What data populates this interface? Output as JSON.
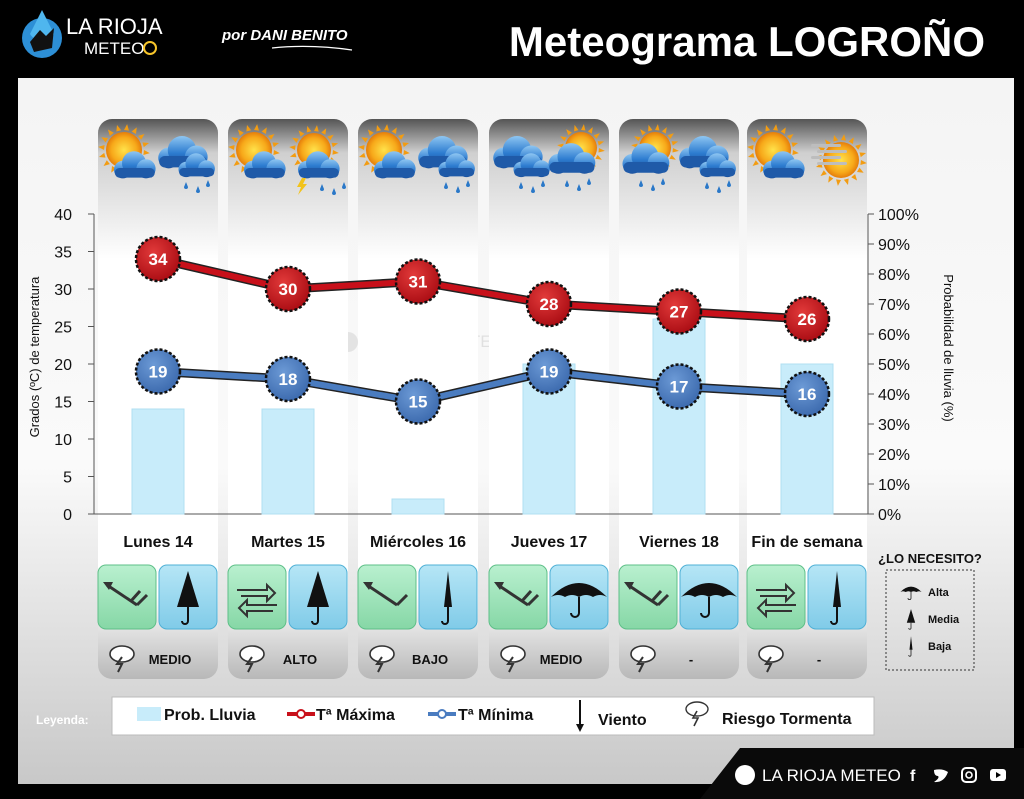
{
  "header": {
    "logo_line1": "LA RIOJA",
    "logo_line2": "METEO",
    "author": "por DANI BENITO",
    "title": "Meteograma LOGROÑO"
  },
  "watermark": "LA RIOJA METEO",
  "days": [
    {
      "label": "Lunes 14",
      "icons": [
        "sun-cloud",
        "rain-cloud"
      ],
      "wind": "wind-nw-strong",
      "umbrella": "umbrella-medium",
      "storm_risk": "MEDIO"
    },
    {
      "label": "Martes 15",
      "icons": [
        "sun-cloud",
        "storm-cloud"
      ],
      "wind": "wind-variable",
      "umbrella": "umbrella-medium",
      "storm_risk": "ALTO"
    },
    {
      "label": "Miércoles 16",
      "icons": [
        "sun-cloud",
        "rain-cloud"
      ],
      "wind": "wind-nw",
      "umbrella": "umbrella-low",
      "storm_risk": "BAJO"
    },
    {
      "label": "Jueves 17",
      "icons": [
        "rain-cloud",
        "sun-rain-cloud"
      ],
      "wind": "wind-nw-strong",
      "umbrella": "umbrella-high",
      "storm_risk": "MEDIO"
    },
    {
      "label": "Viernes 18",
      "icons": [
        "sun-rain-cloud",
        "rain-cloud"
      ],
      "wind": "wind-nw-strong",
      "umbrella": "umbrella-high",
      "storm_risk": "-"
    },
    {
      "label": "Fin de semana",
      "icons": [
        "sun-cloud",
        "fog-sun"
      ],
      "wind": "wind-variable",
      "umbrella": "umbrella-low",
      "storm_risk": "-"
    }
  ],
  "chart_data": {
    "type": "bar+line",
    "categories": [
      "Lunes 14",
      "Martes 15",
      "Miércoles 16",
      "Jueves 17",
      "Viernes 18",
      "Fin de semana"
    ],
    "series": [
      {
        "name": "Prob. Lluvia",
        "kind": "bar",
        "axis": "right",
        "values": [
          35,
          35,
          5,
          50,
          65,
          50
        ],
        "color": "#c8ecfa"
      },
      {
        "name": "Tª Máxima",
        "kind": "line",
        "axis": "left",
        "values": [
          34,
          30,
          31,
          28,
          27,
          26
        ],
        "color": "#c8101a"
      },
      {
        "name": "Tª Mínima",
        "kind": "line",
        "axis": "left",
        "values": [
          19,
          18,
          15,
          19,
          17,
          16
        ],
        "color": "#4a7cc0"
      }
    ],
    "ylabel": "Grados (ºC) de temperatura",
    "y2label": "Probabilidad de lluvia (%)",
    "ylim": [
      0,
      40
    ],
    "y2lim": [
      0,
      100
    ],
    "yticks": [
      "0",
      "5",
      "10",
      "15",
      "20",
      "25",
      "30",
      "35",
      "40"
    ],
    "y2ticks": [
      "0%",
      "10%",
      "20%",
      "30%",
      "40%",
      "50%",
      "60%",
      "70%",
      "80%",
      "90%",
      "100%"
    ]
  },
  "need_box": {
    "title": "¿LO NECESITO?",
    "levels": [
      "Alta",
      "Media",
      "Baja"
    ]
  },
  "legend": {
    "title": "Leyenda:",
    "rain": "Prob. Lluvia",
    "tmax": "Tª Máxima",
    "tmin": "Tª Mínima",
    "wind": "Viento",
    "storm": "Riesgo Tormenta"
  },
  "footer": {
    "brand": "LA RIOJA METEO",
    "social": [
      "facebook-icon",
      "twitter-icon",
      "instagram-icon",
      "youtube-icon"
    ]
  },
  "colors": {
    "tmax": "#c8101a",
    "tmin": "#4a7cc0",
    "rain": "#c8ecfa",
    "wind_bg": "#a8e4c0",
    "umbrella_bg": "#9cd8ee"
  }
}
